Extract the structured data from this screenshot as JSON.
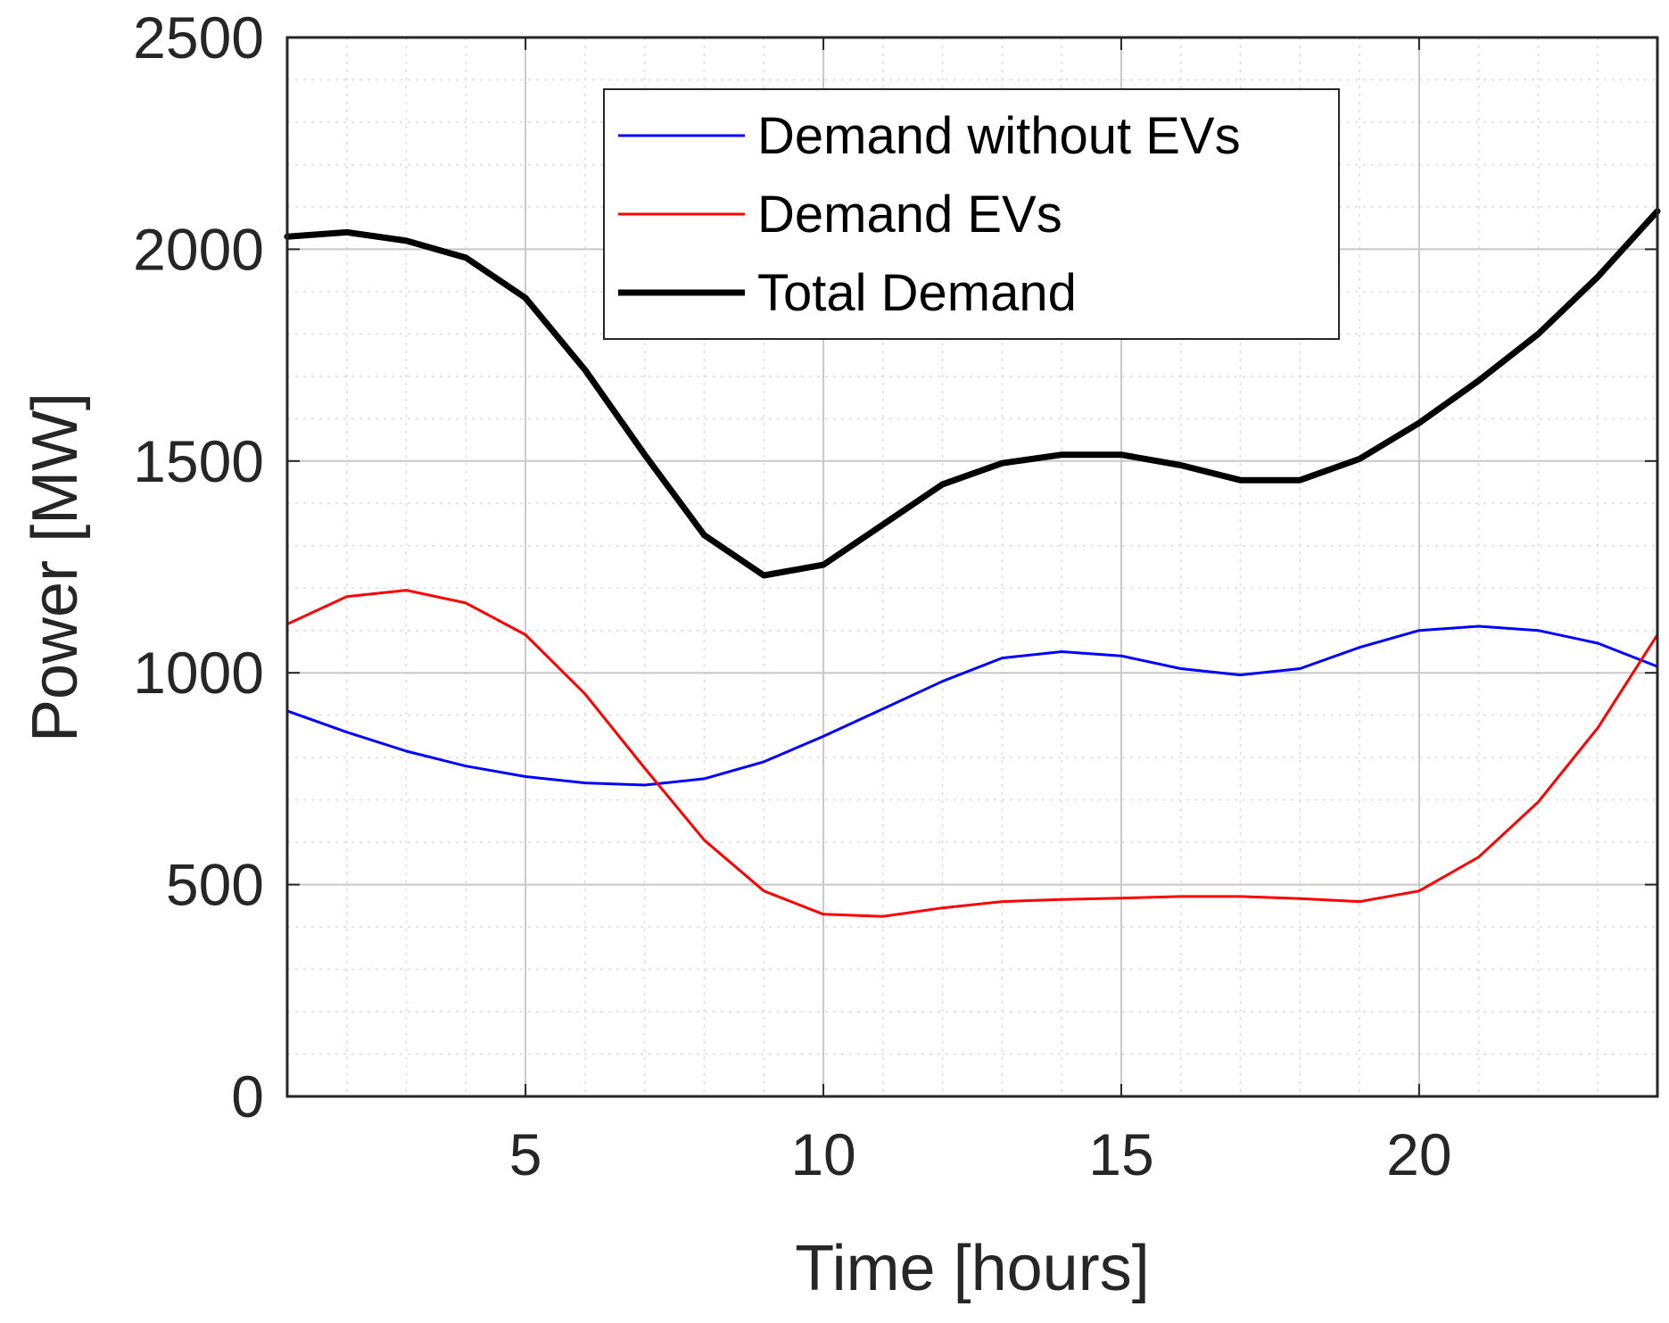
{
  "chart_data": {
    "type": "line",
    "title": "",
    "xlabel": "Time [hours]",
    "ylabel": "Power [MW]",
    "xlim": [
      1,
      24
    ],
    "ylim": [
      0,
      2500
    ],
    "xticks": [
      5,
      10,
      15,
      20
    ],
    "yticks": [
      0,
      500,
      1000,
      1500,
      2000,
      2500
    ],
    "xtick_labels": [
      "5",
      "10",
      "15",
      "20"
    ],
    "ytick_labels": [
      "0",
      "500",
      "1000",
      "1500",
      "2000",
      "2500"
    ],
    "grid": true,
    "minor_grid": true,
    "legend_position": "top-center",
    "x": [
      1,
      2,
      3,
      4,
      5,
      6,
      7,
      8,
      9,
      10,
      11,
      12,
      13,
      14,
      15,
      16,
      17,
      18,
      19,
      20,
      21,
      22,
      23,
      24
    ],
    "series": [
      {
        "name": "Demand without EVs",
        "color": "#0000ff",
        "values": [
          910,
          860,
          815,
          780,
          755,
          740,
          735,
          750,
          790,
          850,
          915,
          980,
          1035,
          1050,
          1040,
          1010,
          995,
          1010,
          1060,
          1100,
          1110,
          1100,
          1070,
          1015
        ]
      },
      {
        "name": "Demand EVs",
        "color": "#ff0000",
        "values": [
          1115,
          1180,
          1195,
          1165,
          1090,
          950,
          775,
          605,
          485,
          430,
          425,
          445,
          460,
          465,
          468,
          472,
          472,
          467,
          460,
          485,
          565,
          695,
          870,
          1090
        ]
      },
      {
        "name": "Total Demand",
        "color": "#000000",
        "values": [
          2030,
          2040,
          2020,
          1980,
          1885,
          1715,
          1515,
          1325,
          1230,
          1255,
          1350,
          1445,
          1495,
          1515,
          1515,
          1490,
          1455,
          1455,
          1505,
          1590,
          1690,
          1800,
          1935,
          2090
        ]
      }
    ]
  }
}
